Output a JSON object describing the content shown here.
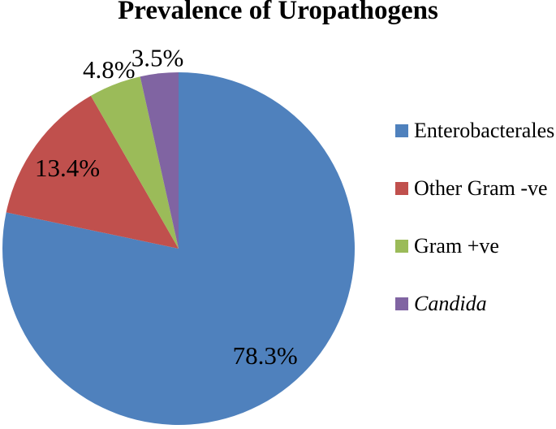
{
  "chart_data": {
    "type": "pie",
    "title": "Prevalence of Uropathogens",
    "series": [
      {
        "name": "Enterobacterales",
        "value": 78.3,
        "label": "78.3%",
        "color": "#4F81BD",
        "italic": false
      },
      {
        "name": "Other Gram -ve",
        "value": 13.4,
        "label": "13.4%",
        "color": "#C0504D",
        "italic": false
      },
      {
        "name": "Gram +ve",
        "value": 4.8,
        "label": "4.8%",
        "color": "#9BBB59",
        "italic": false
      },
      {
        "name": "Candida",
        "value": 3.5,
        "label": "3.5%",
        "color": "#8064A2",
        "italic": true
      }
    ],
    "start_angle_deg": 0,
    "direction": "clockwise",
    "legend_position": "right",
    "label_color": "#000000",
    "background": "#FFFFFF"
  }
}
